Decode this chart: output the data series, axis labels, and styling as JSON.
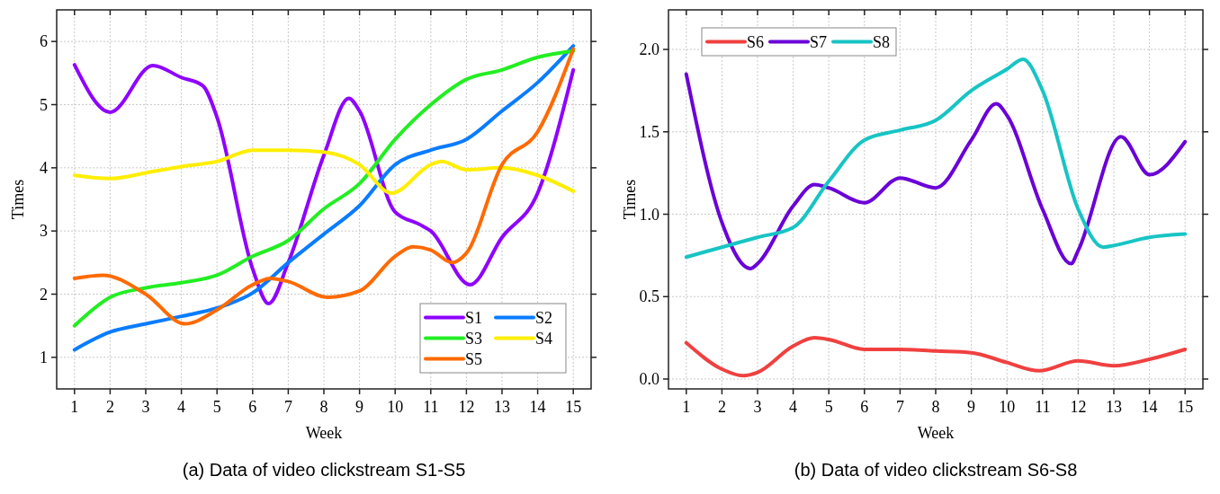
{
  "chart_data": [
    {
      "type": "line",
      "title": "(a) Data of video clickstream S1-S5",
      "xlabel": "Week",
      "ylabel": "Times",
      "xlim": [
        0.5,
        15.5
      ],
      "xticks": [
        1,
        2,
        3,
        4,
        5,
        6,
        7,
        8,
        9,
        10,
        11,
        12,
        13,
        14,
        15
      ],
      "ylim": [
        0.5,
        6.5
      ],
      "yticks": [
        1,
        2,
        3,
        4,
        5,
        6
      ],
      "grid": true,
      "legend": "bottom right",
      "marker": "none",
      "line_style": "solid",
      "series": [
        {
          "name": "S1",
          "color": "#8f00ff",
          "x": [
            1,
            2,
            3.2,
            4,
            4.6,
            5,
            6,
            6.45,
            7,
            8,
            8.7,
            9,
            10,
            10.7,
            11,
            12.1,
            13,
            14,
            15
          ],
          "values": [
            5.63,
            4.88,
            5.62,
            5.43,
            5.3,
            4.8,
            2.4,
            1.85,
            2.5,
            4.2,
            5.1,
            4.9,
            3.3,
            3.1,
            3.0,
            2.15,
            2.9,
            3.6,
            5.55
          ]
        },
        {
          "name": "S2",
          "color": "#0a7cff",
          "x": [
            1,
            2,
            3,
            4,
            5,
            6,
            7,
            8,
            9,
            10,
            11,
            12,
            13,
            14,
            15
          ],
          "values": [
            1.12,
            1.4,
            1.53,
            1.65,
            1.78,
            2.02,
            2.5,
            2.95,
            3.4,
            4.05,
            4.28,
            4.45,
            4.9,
            5.35,
            5.93
          ]
        },
        {
          "name": "S3",
          "color": "#22ee22",
          "x": [
            1,
            2,
            3,
            4,
            5,
            6,
            7,
            8,
            9,
            10,
            11,
            12,
            13,
            14,
            15
          ],
          "values": [
            1.5,
            1.95,
            2.1,
            2.18,
            2.3,
            2.6,
            2.85,
            3.35,
            3.75,
            4.45,
            5.0,
            5.4,
            5.55,
            5.75,
            5.85
          ]
        },
        {
          "name": "S4",
          "color": "#ffee00",
          "x": [
            1,
            2,
            3,
            4,
            5,
            6,
            7,
            8,
            9,
            9.9,
            11,
            11.3,
            12,
            13,
            14,
            15
          ],
          "values": [
            3.88,
            3.83,
            3.92,
            4.02,
            4.1,
            4.28,
            4.28,
            4.25,
            4.05,
            3.6,
            4.05,
            4.1,
            3.97,
            4.0,
            3.88,
            3.63
          ]
        },
        {
          "name": "S5",
          "color": "#ff6a00",
          "x": [
            1,
            1.8,
            3,
            4.1,
            5,
            6,
            6.5,
            7,
            8.1,
            9,
            10,
            10.5,
            11,
            11.6,
            12,
            13,
            14,
            15
          ],
          "values": [
            2.25,
            2.3,
            2.0,
            1.53,
            1.75,
            2.15,
            2.25,
            2.2,
            1.95,
            2.05,
            2.6,
            2.75,
            2.7,
            2.5,
            2.65,
            4.05,
            4.57,
            5.88
          ]
        }
      ]
    },
    {
      "type": "line",
      "title": "(b) Data of video clickstream S6-S8",
      "xlabel": "Week",
      "ylabel": "Times",
      "xlim": [
        0.5,
        15.5
      ],
      "xticks": [
        1,
        2,
        3,
        4,
        5,
        6,
        7,
        8,
        9,
        10,
        11,
        12,
        13,
        14,
        15
      ],
      "ylim": [
        -0.06,
        2.24
      ],
      "yticks": [
        {
          "value": 0,
          "label": "0.0"
        },
        {
          "value": 0.5,
          "label": "0.5"
        },
        {
          "value": 1,
          "label": "1.0"
        },
        {
          "value": 1.5,
          "label": "1.5"
        },
        {
          "value": 2,
          "label": "2.0"
        }
      ],
      "grid": true,
      "legend": "top left",
      "marker": "none",
      "line_style": "solid",
      "series": [
        {
          "name": "S6",
          "color": "#f04040",
          "x": [
            1,
            2,
            2.6,
            3,
            4,
            4.6,
            5,
            6,
            7,
            8,
            9,
            10,
            10.9,
            12,
            13,
            14,
            15
          ],
          "values": [
            0.22,
            0.06,
            0.02,
            0.04,
            0.2,
            0.25,
            0.24,
            0.18,
            0.18,
            0.17,
            0.16,
            0.1,
            0.05,
            0.11,
            0.08,
            0.12,
            0.18
          ]
        },
        {
          "name": "S7",
          "color": "#6a00d8",
          "x": [
            1,
            2,
            2.8,
            3,
            4,
            4.6,
            5,
            6,
            7,
            8,
            9,
            9.7,
            10,
            11,
            11.8,
            12,
            13.2,
            14,
            15
          ],
          "values": [
            1.85,
            0.95,
            0.67,
            0.7,
            1.05,
            1.18,
            1.16,
            1.07,
            1.22,
            1.16,
            1.45,
            1.67,
            1.6,
            1.03,
            0.7,
            0.78,
            1.47,
            1.24,
            1.44
          ]
        },
        {
          "name": "S8",
          "color": "#18c4c4",
          "x": [
            1,
            2,
            3,
            4,
            5,
            6,
            7,
            8,
            9,
            10,
            10.45,
            11,
            12,
            12.7,
            13,
            14,
            15
          ],
          "values": [
            0.74,
            0.8,
            0.86,
            0.92,
            1.2,
            1.45,
            1.51,
            1.57,
            1.75,
            1.88,
            1.94,
            1.75,
            1.03,
            0.8,
            0.81,
            0.86,
            0.88
          ]
        }
      ]
    }
  ]
}
